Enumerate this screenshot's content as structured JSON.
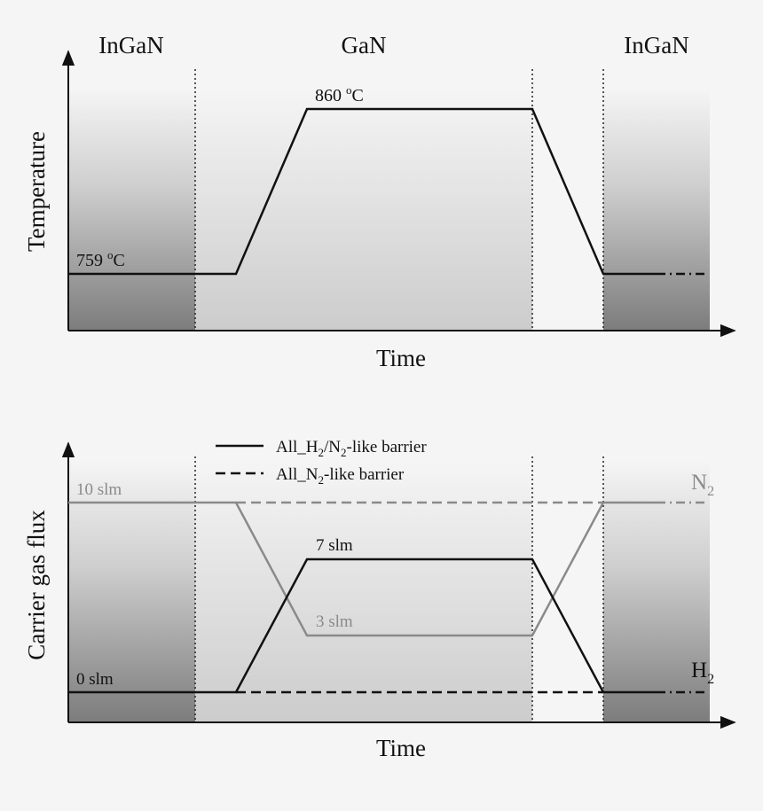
{
  "top_panel": {
    "region_labels": [
      "InGaN",
      "GaN",
      "InGaN"
    ],
    "y_axis_label": "Temperature",
    "x_axis_label": "Time",
    "low_temp": {
      "value": "759",
      "unit_sup": "o",
      "unit": "C"
    },
    "high_temp": {
      "value": "860",
      "unit_sup": "o",
      "unit": "C"
    }
  },
  "bottom_panel": {
    "y_axis_label": "Carrier gas flux",
    "x_axis_label": "Time",
    "legend": [
      {
        "pre": "All_H",
        "sub1": "2",
        "mid": "/N",
        "sub2": "2",
        "post": "-like barrier",
        "style": "solid"
      },
      {
        "pre": "All_N",
        "sub1": "2",
        "post": "-like barrier",
        "style": "dashed"
      }
    ],
    "labels": {
      "n2_high": "10 slm",
      "h2_low": "0 slm",
      "h2_peak": "7 slm",
      "n2_dip": "3 slm",
      "n2_name": "N",
      "n2_sub": "2",
      "h2_name": "H",
      "h2_sub": "2"
    }
  },
  "colors": {
    "line_black": "#111111",
    "line_gray": "#8a8a8a",
    "ingan_shade_dark": "#7e7e7e",
    "gan_shade_dark": "#cdcdcd"
  }
}
